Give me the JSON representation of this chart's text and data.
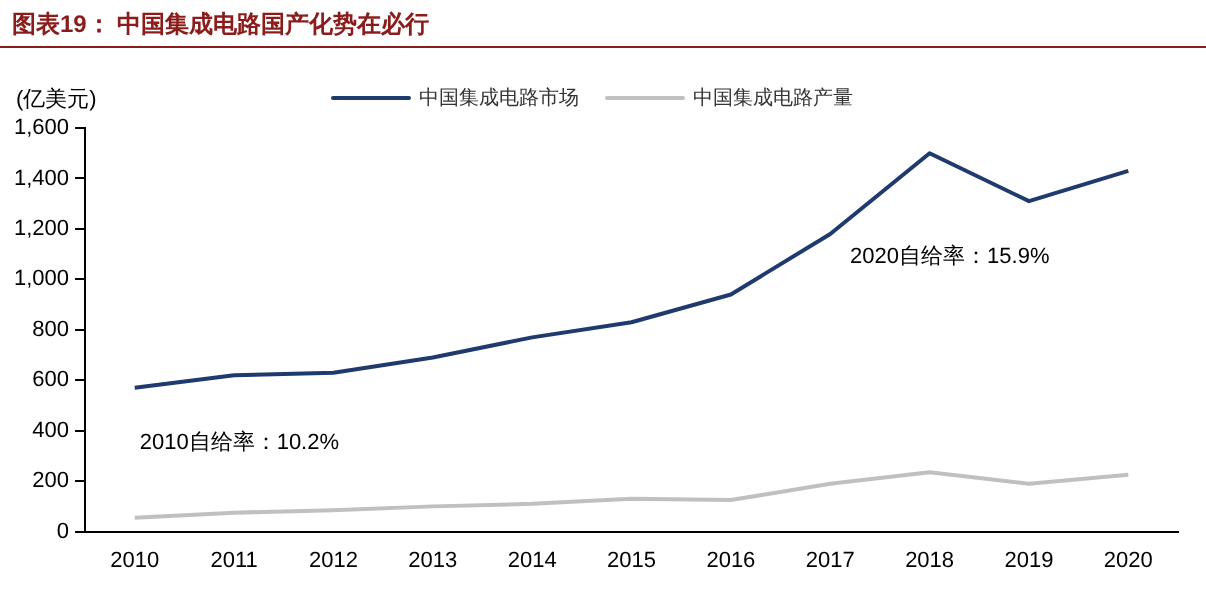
{
  "chart_data": {
    "type": "line",
    "title": "图表19： 中国集成电路国产化势在必行",
    "ylabel": "(亿美元)",
    "categories": [
      "2010",
      "2011",
      "2012",
      "2013",
      "2014",
      "2015",
      "2016",
      "2017",
      "2018",
      "2019",
      "2020"
    ],
    "series": [
      {
        "name": "中国集成电路市场",
        "color": "#1f3a6e",
        "values": [
          570,
          620,
          630,
          690,
          770,
          830,
          940,
          1180,
          1500,
          1310,
          1430
        ]
      },
      {
        "name": "中国集成电路产量",
        "color": "#c0c0c0",
        "values": [
          55,
          75,
          85,
          100,
          110,
          130,
          125,
          190,
          235,
          190,
          225
        ]
      }
    ],
    "ylim": [
      0,
      1600
    ],
    "yticks": [
      {
        "value": 0,
        "label": "0"
      },
      {
        "value": 200,
        "label": "200"
      },
      {
        "value": 400,
        "label": "400"
      },
      {
        "value": 600,
        "label": "600"
      },
      {
        "value": 800,
        "label": "800"
      },
      {
        "value": 1000,
        "label": "1,000"
      },
      {
        "value": 1200,
        "label": "1,200"
      },
      {
        "value": 1400,
        "label": "1,400"
      },
      {
        "value": 1600,
        "label": "1,600"
      }
    ],
    "annotations": [
      "2010自给率：10.2%",
      "2020自给率：15.9%"
    ],
    "legend": "top",
    "grid": false,
    "marker": "none",
    "line_style": "solid"
  }
}
